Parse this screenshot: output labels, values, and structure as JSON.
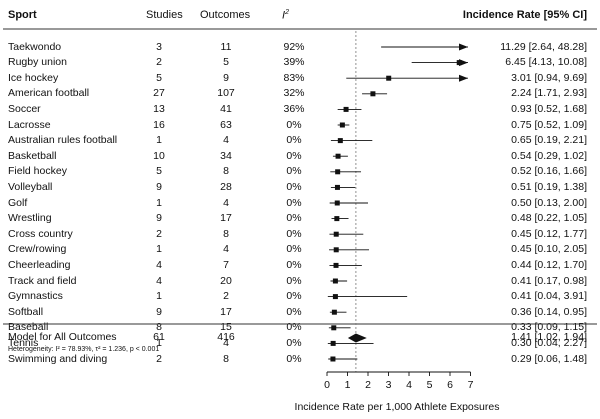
{
  "headers": {
    "sport": "Sport",
    "studies": "Studies",
    "outcomes": "Outcomes",
    "i2_base": "I",
    "i2_sup": "2",
    "rate": "Incidence Rate [95% CI]"
  },
  "chart_data": {
    "type": "forest",
    "xlabel": "Incidence Rate per 1,000 Athlete Exposures",
    "xlim": [
      0,
      7
    ],
    "xticks": [
      "0",
      "1",
      "2",
      "3",
      "4",
      "5",
      "6",
      "7"
    ],
    "reference_line": 1.41,
    "rows": [
      {
        "sport": "Taekwondo",
        "studies": "3",
        "outcomes": "11",
        "i2": "92%",
        "est": 11.29,
        "lo": 2.64,
        "hi": 48.28,
        "label": "11.29 [2.64, 48.28]"
      },
      {
        "sport": "Rugby union",
        "studies": "2",
        "outcomes": "5",
        "i2": "39%",
        "est": 6.45,
        "lo": 4.13,
        "hi": 10.08,
        "label": "6.45 [4.13, 10.08]"
      },
      {
        "sport": "Ice hockey",
        "studies": "5",
        "outcomes": "9",
        "i2": "83%",
        "est": 3.01,
        "lo": 0.94,
        "hi": 9.69,
        "label": "3.01 [0.94, 9.69]"
      },
      {
        "sport": "American football",
        "studies": "27",
        "outcomes": "107",
        "i2": "32%",
        "est": 2.24,
        "lo": 1.71,
        "hi": 2.93,
        "label": "2.24 [1.71, 2.93]"
      },
      {
        "sport": "Soccer",
        "studies": "13",
        "outcomes": "41",
        "i2": "36%",
        "est": 0.93,
        "lo": 0.52,
        "hi": 1.68,
        "label": "0.93 [0.52, 1.68]"
      },
      {
        "sport": "Lacrosse",
        "studies": "16",
        "outcomes": "63",
        "i2": "0%",
        "est": 0.75,
        "lo": 0.52,
        "hi": 1.09,
        "label": "0.75 [0.52, 1.09]"
      },
      {
        "sport": "Australian rules football",
        "studies": "1",
        "outcomes": "4",
        "i2": "0%",
        "est": 0.65,
        "lo": 0.19,
        "hi": 2.21,
        "label": "0.65 [0.19, 2.21]"
      },
      {
        "sport": "Basketball",
        "studies": "10",
        "outcomes": "34",
        "i2": "0%",
        "est": 0.54,
        "lo": 0.29,
        "hi": 1.02,
        "label": "0.54 [0.29, 1.02]"
      },
      {
        "sport": "Field hockey",
        "studies": "5",
        "outcomes": "8",
        "i2": "0%",
        "est": 0.52,
        "lo": 0.16,
        "hi": 1.66,
        "label": "0.52 [0.16, 1.66]"
      },
      {
        "sport": "Volleyball",
        "studies": "9",
        "outcomes": "28",
        "i2": "0%",
        "est": 0.51,
        "lo": 0.19,
        "hi": 1.38,
        "label": "0.51 [0.19, 1.38]"
      },
      {
        "sport": "Golf",
        "studies": "1",
        "outcomes": "4",
        "i2": "0%",
        "est": 0.5,
        "lo": 0.13,
        "hi": 2.0,
        "label": "0.50 [0.13, 2.00]"
      },
      {
        "sport": "Wrestling",
        "studies": "9",
        "outcomes": "17",
        "i2": "0%",
        "est": 0.48,
        "lo": 0.22,
        "hi": 1.05,
        "label": "0.48 [0.22, 1.05]"
      },
      {
        "sport": "Cross country",
        "studies": "2",
        "outcomes": "8",
        "i2": "0%",
        "est": 0.45,
        "lo": 0.12,
        "hi": 1.77,
        "label": "0.45 [0.12, 1.77]"
      },
      {
        "sport": "Crew/rowing",
        "studies": "1",
        "outcomes": "4",
        "i2": "0%",
        "est": 0.45,
        "lo": 0.1,
        "hi": 2.05,
        "label": "0.45 [0.10, 2.05]"
      },
      {
        "sport": "Cheerleading",
        "studies": "4",
        "outcomes": "7",
        "i2": "0%",
        "est": 0.44,
        "lo": 0.12,
        "hi": 1.7,
        "label": "0.44 [0.12, 1.70]"
      },
      {
        "sport": "Track and field",
        "studies": "4",
        "outcomes": "20",
        "i2": "0%",
        "est": 0.41,
        "lo": 0.17,
        "hi": 0.98,
        "label": "0.41 [0.17, 0.98]"
      },
      {
        "sport": "Gymnastics",
        "studies": "1",
        "outcomes": "2",
        "i2": "0%",
        "est": 0.41,
        "lo": 0.04,
        "hi": 3.91,
        "label": "0.41 [0.04, 3.91]"
      },
      {
        "sport": "Softball",
        "studies": "9",
        "outcomes": "17",
        "i2": "0%",
        "est": 0.36,
        "lo": 0.14,
        "hi": 0.95,
        "label": "0.36 [0.14, 0.95]"
      },
      {
        "sport": "Baseball",
        "studies": "8",
        "outcomes": "15",
        "i2": "0%",
        "est": 0.33,
        "lo": 0.09,
        "hi": 1.15,
        "label": "0.33 [0.09, 1.15]"
      },
      {
        "sport": "Tennis",
        "studies": "1",
        "outcomes": "4",
        "i2": "0%",
        "est": 0.3,
        "lo": 0.04,
        "hi": 2.27,
        "label": "0.30 [0.04, 2.27]"
      },
      {
        "sport": "Swimming and diving",
        "studies": "2",
        "outcomes": "8",
        "i2": "0%",
        "est": 0.29,
        "lo": 0.06,
        "hi": 1.48,
        "label": "0.29 [0.06, 1.48]"
      }
    ],
    "summary": {
      "label": "Model for All Outcomes",
      "studies": "61",
      "outcomes": "416",
      "est": 1.41,
      "lo": 1.02,
      "hi": 1.94,
      "text": "1.41 [1.02, 1.94]"
    },
    "heterogeneity": "Heterogeneity: I² = 78.93%, τ² = 1.236, p < 0.001"
  }
}
